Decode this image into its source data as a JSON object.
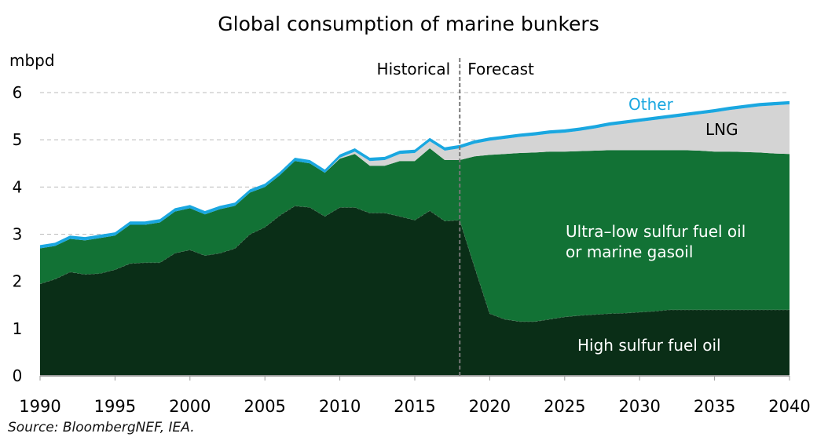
{
  "chart_data": {
    "type": "area",
    "stacked": true,
    "title": "Global consumption of marine bunkers",
    "ylabel": "mbpd",
    "xlabel": "",
    "xlim": [
      1990,
      2040
    ],
    "ylim": [
      0,
      6
    ],
    "x_ticks": [
      1990,
      1995,
      2000,
      2005,
      2010,
      2015,
      2020,
      2025,
      2030,
      2035,
      2040
    ],
    "y_ticks": [
      0,
      1,
      2,
      3,
      4,
      5,
      6
    ],
    "grid": "horizontal dashed",
    "divider": {
      "x": 2018,
      "left_label": "Historical",
      "right_label": "Forecast"
    },
    "x": [
      1990,
      1991,
      1992,
      1993,
      1994,
      1995,
      1996,
      1997,
      1998,
      1999,
      2000,
      2001,
      2002,
      2003,
      2004,
      2005,
      2006,
      2007,
      2008,
      2009,
      2010,
      2011,
      2012,
      2013,
      2014,
      2015,
      2016,
      2017,
      2018,
      2019,
      2020,
      2021,
      2022,
      2023,
      2024,
      2025,
      2026,
      2027,
      2028,
      2029,
      2030,
      2031,
      2032,
      2033,
      2034,
      2035,
      2036,
      2037,
      2038,
      2039,
      2040
    ],
    "series": [
      {
        "name": "High sulfur fuel oil",
        "color": "#0a2e17",
        "values": [
          1.95,
          2.05,
          2.2,
          2.15,
          2.17,
          2.25,
          2.38,
          2.4,
          2.4,
          2.6,
          2.67,
          2.55,
          2.6,
          2.7,
          3.0,
          3.15,
          3.4,
          3.6,
          3.57,
          3.38,
          3.57,
          3.57,
          3.45,
          3.45,
          3.38,
          3.3,
          3.5,
          3.28,
          3.3,
          2.3,
          1.32,
          1.2,
          1.15,
          1.15,
          1.2,
          1.25,
          1.28,
          1.3,
          1.32,
          1.33,
          1.35,
          1.37,
          1.4,
          1.4,
          1.4,
          1.4,
          1.4,
          1.4,
          1.4,
          1.4,
          1.4
        ]
      },
      {
        "name": "Ultra-low sulfur fuel oil or marine gasoil",
        "color": "#127235",
        "values": [
          0.75,
          0.7,
          0.7,
          0.72,
          0.75,
          0.72,
          0.82,
          0.8,
          0.85,
          0.88,
          0.88,
          0.87,
          0.93,
          0.9,
          0.88,
          0.85,
          0.85,
          0.95,
          0.93,
          0.92,
          1.03,
          1.13,
          1.0,
          1.0,
          1.17,
          1.25,
          1.32,
          1.29,
          1.27,
          2.35,
          3.36,
          3.5,
          3.57,
          3.58,
          3.55,
          3.5,
          3.48,
          3.47,
          3.46,
          3.45,
          3.43,
          3.41,
          3.38,
          3.38,
          3.37,
          3.35,
          3.35,
          3.34,
          3.33,
          3.31,
          3.3
        ]
      },
      {
        "name": "LNG",
        "color": "#d4d4d4",
        "values": [
          0,
          0,
          0,
          0,
          0,
          0,
          0,
          0,
          0,
          0,
          0,
          0,
          0,
          0,
          0,
          0,
          0,
          0,
          0,
          0,
          0.02,
          0.05,
          0.1,
          0.12,
          0.15,
          0.17,
          0.15,
          0.2,
          0.25,
          0.27,
          0.3,
          0.32,
          0.34,
          0.36,
          0.38,
          0.4,
          0.43,
          0.47,
          0.52,
          0.56,
          0.6,
          0.64,
          0.68,
          0.72,
          0.77,
          0.83,
          0.88,
          0.93,
          0.98,
          1.02,
          1.05
        ]
      },
      {
        "name": "Other",
        "color": "#1aa7e0",
        "values": [
          0.07,
          0.07,
          0.07,
          0.07,
          0.07,
          0.07,
          0.07,
          0.07,
          0.07,
          0.07,
          0.07,
          0.07,
          0.07,
          0.07,
          0.07,
          0.07,
          0.07,
          0.07,
          0.07,
          0.07,
          0.07,
          0.07,
          0.07,
          0.07,
          0.07,
          0.07,
          0.07,
          0.07,
          0.07,
          0.07,
          0.07,
          0.07,
          0.07,
          0.07,
          0.07,
          0.07,
          0.07,
          0.07,
          0.07,
          0.07,
          0.07,
          0.07,
          0.07,
          0.07,
          0.07,
          0.07,
          0.07,
          0.07,
          0.07,
          0.07,
          0.07
        ]
      }
    ],
    "annotations": {
      "other": "Other",
      "lng": "LNG",
      "ulsfo_line1": "Ultra–low sulfur fuel oil",
      "ulsfo_line2": "or marine gasoil",
      "hsfo": "High sulfur fuel oil"
    },
    "source": "Source: BloombergNEF, IEA."
  }
}
